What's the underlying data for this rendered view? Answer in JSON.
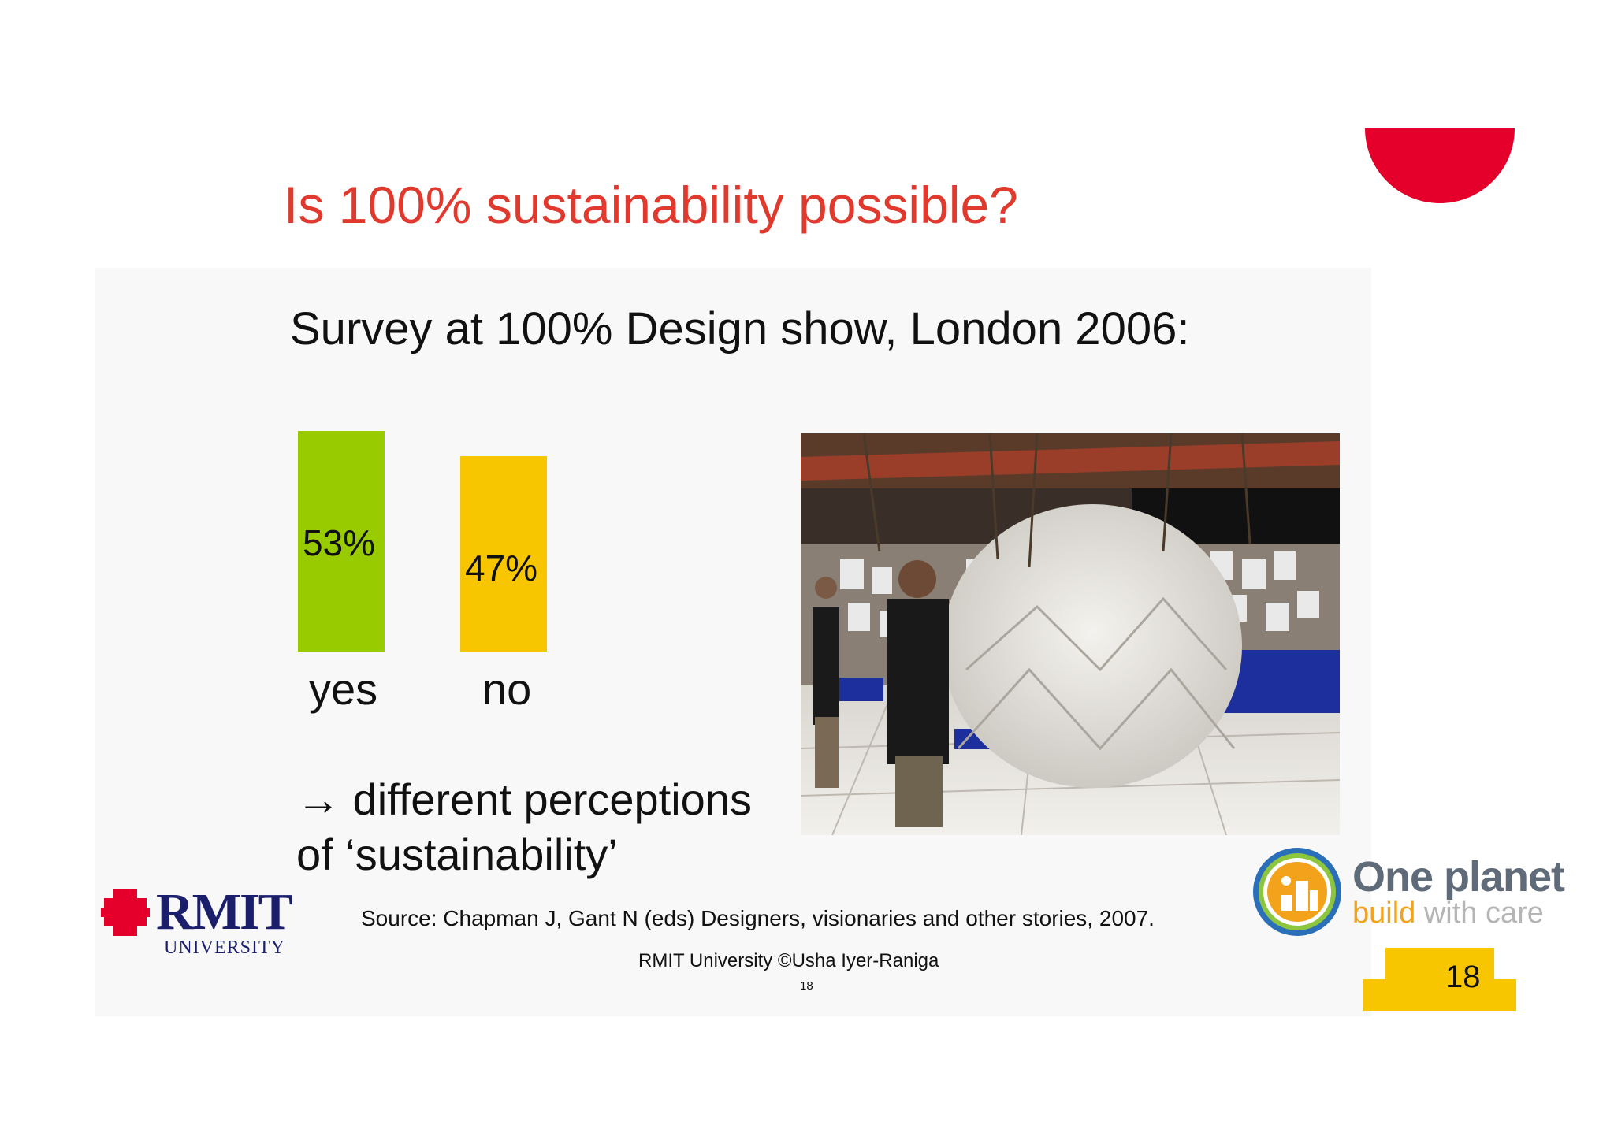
{
  "slide": {
    "title": "Is 100% sustainability possible?",
    "subtitle": "Survey at 100% Design show, London 2006:",
    "conclusion_line1": "→ different perceptions",
    "conclusion_line2": "of ‘sustainability’",
    "source": "Source: Chapman J, Gant N (eds) Designers, visionaries and other stories, 2007.",
    "footer": "RMIT University ©Usha Iyer-Raniga",
    "footer_page": "18",
    "page_number": "18"
  },
  "chart_data": {
    "type": "bar",
    "categories": [
      "yes",
      "no"
    ],
    "values": [
      53,
      47
    ],
    "value_labels": [
      "53%",
      "47%"
    ],
    "colors": [
      "#99cc00",
      "#f7c600"
    ],
    "ylim": [
      0,
      53
    ]
  },
  "logos": {
    "rmit_main": "RMIT",
    "rmit_sub": "UNIVERSITY",
    "oneplanet_line1": "One planet",
    "oneplanet_line2_a": "build",
    "oneplanet_line2_b": " with care"
  },
  "colors": {
    "title": "#e03a2f",
    "accent_red": "#e4002b",
    "page_box": "#f7c600",
    "rmit_navy": "#1b1f6b"
  }
}
